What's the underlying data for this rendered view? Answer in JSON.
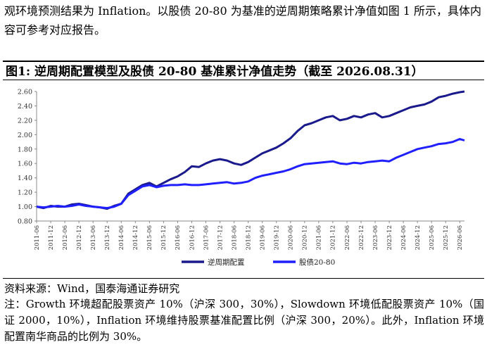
{
  "intro_text": "观环境预测结果为 Inflation。以股债 20-80 为基准的逆周期策略累计净值如图 1 所示，具体内容可参考对应报告。",
  "figure_title": "图1:  逆周期配置模型及股债 20-80 基准累计净值走势（截至 2026.08.31）",
  "source_text": "资料来源：Wind，国泰海通证券研究",
  "note_text": "注：Growth 环境超配股票资产 10%（沪深 300，30%），Slowdown 环境低配股票资产 10%（国证 2000，10%），Inflation 环境维持股票基准配置比例（沪深 300，20%）。此外，Inflation 环境配置南华商品的比例为 30%。",
  "chart_data": {
    "type": "line",
    "title": "",
    "xlabel": "",
    "ylabel": "",
    "ylim": [
      0.8,
      2.6
    ],
    "yticks": [
      0.8,
      1.0,
      1.2,
      1.4,
      1.6,
      1.8,
      2.0,
      2.2,
      2.4,
      2.6
    ],
    "x_tick_labels": [
      "2011-06",
      "2011-12",
      "2012-06",
      "2012-12",
      "2013-06",
      "2013-12",
      "2014-06",
      "2014-12",
      "2015-06",
      "2015-12",
      "2016-06",
      "2016-12",
      "2017-06",
      "2017-12",
      "2018-06",
      "2018-12",
      "2019-06",
      "2019-12",
      "2020-06",
      "2020-12",
      "2021-06",
      "2021-12",
      "2022-06",
      "2022-12",
      "2023-06",
      "2023-12",
      "2024-06",
      "2024-12",
      "2025-06",
      "2025-12",
      "2026-06"
    ],
    "grid": false,
    "legend_position": "bottom",
    "series": [
      {
        "name": "逆周期配置",
        "color": "#1a1a8c",
        "x": [
          "2011-06",
          "2011-09",
          "2011-12",
          "2012-03",
          "2012-06",
          "2012-09",
          "2012-12",
          "2013-03",
          "2013-06",
          "2013-09",
          "2013-12",
          "2014-03",
          "2014-06",
          "2014-09",
          "2014-12",
          "2015-03",
          "2015-06",
          "2015-09",
          "2015-12",
          "2016-03",
          "2016-06",
          "2016-09",
          "2016-12",
          "2017-03",
          "2017-06",
          "2017-09",
          "2017-12",
          "2018-03",
          "2018-06",
          "2018-09",
          "2018-12",
          "2019-03",
          "2019-06",
          "2019-09",
          "2019-12",
          "2020-03",
          "2020-06",
          "2020-09",
          "2020-12",
          "2021-03",
          "2021-06",
          "2021-09",
          "2021-12",
          "2022-03",
          "2022-06",
          "2022-09",
          "2022-12",
          "2023-03",
          "2023-06",
          "2023-09",
          "2023-12",
          "2024-03",
          "2024-06",
          "2024-09",
          "2024-12",
          "2025-03",
          "2025-06",
          "2025-09",
          "2025-12",
          "2026-03",
          "2026-06",
          "2026-08"
        ],
        "values": [
          1.0,
          0.98,
          1.01,
          1.0,
          1.0,
          1.03,
          1.04,
          1.02,
          1.0,
          0.99,
          0.97,
          1.01,
          1.04,
          1.18,
          1.24,
          1.3,
          1.33,
          1.28,
          1.33,
          1.38,
          1.42,
          1.48,
          1.56,
          1.55,
          1.6,
          1.64,
          1.66,
          1.64,
          1.6,
          1.58,
          1.62,
          1.68,
          1.74,
          1.78,
          1.82,
          1.88,
          1.95,
          2.05,
          2.13,
          2.16,
          2.2,
          2.24,
          2.26,
          2.2,
          2.22,
          2.26,
          2.24,
          2.28,
          2.3,
          2.24,
          2.26,
          2.3,
          2.34,
          2.38,
          2.4,
          2.42,
          2.46,
          2.52,
          2.54,
          2.57,
          2.59,
          2.6
        ]
      },
      {
        "name": "股债20-80",
        "color": "#1f1fff",
        "x": [
          "2011-06",
          "2011-09",
          "2011-12",
          "2012-03",
          "2012-06",
          "2012-09",
          "2012-12",
          "2013-03",
          "2013-06",
          "2013-09",
          "2013-12",
          "2014-03",
          "2014-06",
          "2014-09",
          "2014-12",
          "2015-03",
          "2015-06",
          "2015-09",
          "2015-12",
          "2016-03",
          "2016-06",
          "2016-09",
          "2016-12",
          "2017-03",
          "2017-06",
          "2017-09",
          "2017-12",
          "2018-03",
          "2018-06",
          "2018-09",
          "2018-12",
          "2019-03",
          "2019-06",
          "2019-09",
          "2019-12",
          "2020-03",
          "2020-06",
          "2020-09",
          "2020-12",
          "2021-03",
          "2021-06",
          "2021-09",
          "2021-12",
          "2022-03",
          "2022-06",
          "2022-09",
          "2022-12",
          "2023-03",
          "2023-06",
          "2023-09",
          "2023-12",
          "2024-03",
          "2024-06",
          "2024-09",
          "2024-12",
          "2025-03",
          "2025-06",
          "2025-09",
          "2025-12",
          "2026-03",
          "2026-06",
          "2026-08"
        ],
        "values": [
          1.0,
          0.99,
          1.0,
          1.01,
          1.0,
          1.01,
          1.03,
          1.01,
          1.0,
          0.99,
          0.98,
          1.0,
          1.04,
          1.16,
          1.22,
          1.28,
          1.3,
          1.27,
          1.29,
          1.3,
          1.3,
          1.31,
          1.3,
          1.3,
          1.31,
          1.32,
          1.33,
          1.34,
          1.32,
          1.33,
          1.35,
          1.4,
          1.43,
          1.45,
          1.47,
          1.49,
          1.52,
          1.56,
          1.59,
          1.6,
          1.61,
          1.62,
          1.63,
          1.6,
          1.59,
          1.61,
          1.6,
          1.62,
          1.63,
          1.64,
          1.63,
          1.68,
          1.72,
          1.76,
          1.8,
          1.82,
          1.84,
          1.87,
          1.88,
          1.9,
          1.94,
          1.92
        ]
      }
    ]
  }
}
